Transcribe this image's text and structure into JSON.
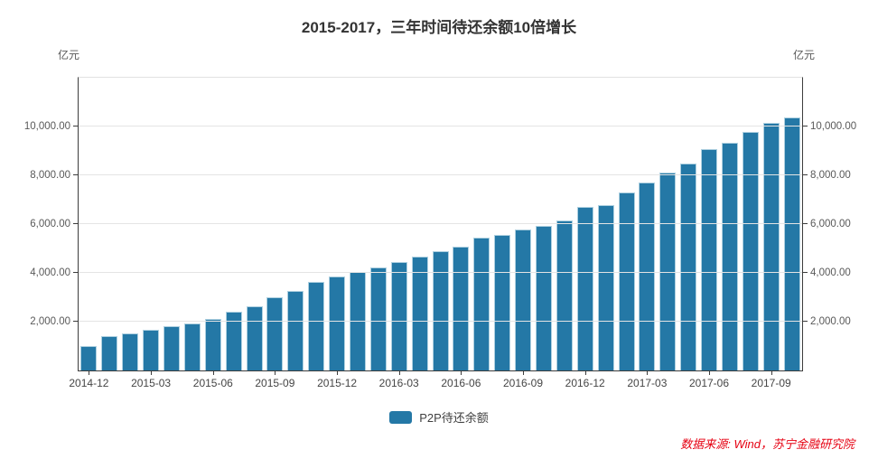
{
  "title": "2015-2017，三年时间待还余额10倍增长",
  "unit_left": "亿元",
  "unit_right": "亿元",
  "legend": {
    "label": "P2P待还余额"
  },
  "source_note": "数据来源: Wind，苏宁金融研究院",
  "colors": {
    "bar": "#2478a6",
    "bar_edge": "#aed0e0",
    "grid": "#e4e4e4",
    "axis": "#3c3c3c",
    "tick_text": "#595959",
    "source_text": "#e60012"
  },
  "chart_data": {
    "type": "bar",
    "title": "2015-2017，三年时间待还余额10倍增长",
    "xlabel": "",
    "ylabel": "亿元",
    "ylim": [
      0,
      12000
    ],
    "grid": true,
    "legend_position": "bottom",
    "y_tick_values": [
      2000,
      4000,
      6000,
      8000,
      10000
    ],
    "y_tick_labels": [
      "2,000.00",
      "4,000.00",
      "6,000.00",
      "8,000.00",
      "10,000.00"
    ],
    "x": [
      "2014-12",
      "2015-01",
      "2015-02",
      "2015-03",
      "2015-04",
      "2015-05",
      "2015-06",
      "2015-07",
      "2015-08",
      "2015-09",
      "2015-10",
      "2015-11",
      "2015-12",
      "2016-01",
      "2016-02",
      "2016-03",
      "2016-04",
      "2016-05",
      "2016-06",
      "2016-07",
      "2016-08",
      "2016-09",
      "2016-10",
      "2016-11",
      "2016-12",
      "2017-01",
      "2017-02",
      "2017-03",
      "2017-04",
      "2017-05",
      "2017-06",
      "2017-07",
      "2017-08",
      "2017-09",
      "2017-10"
    ],
    "x_tick_step": 3,
    "x_tick_labels": [
      "2014-12",
      "2015-03",
      "2015-06",
      "2015-09",
      "2015-12",
      "2016-03",
      "2016-06",
      "2016-09",
      "2016-12",
      "2017-03",
      "2017-06",
      "2017-09"
    ],
    "series": [
      {
        "name": "P2P待还余额",
        "values": [
          990,
          1400,
          1510,
          1670,
          1820,
          1940,
          2120,
          2400,
          2650,
          2990,
          3250,
          3620,
          3860,
          4030,
          4210,
          4430,
          4670,
          4890,
          5060,
          5430,
          5550,
          5790,
          5930,
          6160,
          6700,
          6780,
          7300,
          7720,
          8100,
          8480,
          9060,
          9340,
          9790,
          10160,
          10390
        ]
      }
    ]
  }
}
